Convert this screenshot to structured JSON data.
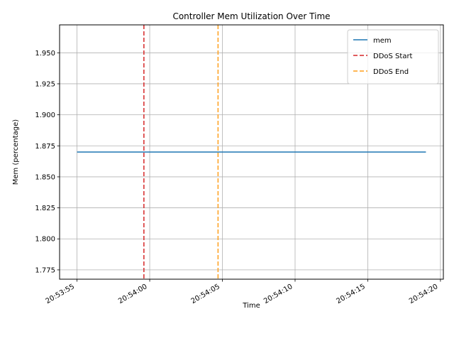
{
  "chart_data": {
    "type": "line",
    "title": "Controller Mem Utilization Over Time",
    "xlabel": "Time",
    "ylabel": "Mem (percentage)",
    "x_range": [
      "20:53:53.8",
      "20:54:20.2"
    ],
    "ylim": [
      1.7675,
      1.9725
    ],
    "x_ticks": [
      "20:53:55",
      "20:54:00",
      "20:54:05",
      "20:54:10",
      "20:54:15",
      "20:54:20"
    ],
    "y_ticks": [
      1.775,
      1.8,
      1.825,
      1.85,
      1.875,
      1.9,
      1.925,
      1.95
    ],
    "y_tick_labels": [
      "1.775",
      "1.800",
      "1.825",
      "1.850",
      "1.875",
      "1.900",
      "1.925",
      "1.950"
    ],
    "grid": true,
    "legend_position": "top-right",
    "series": [
      {
        "name": "mem",
        "color": "#1f77b4",
        "points": [
          [
            "20:53:55",
            1.87
          ],
          [
            "20:54:19",
            1.87
          ]
        ]
      }
    ],
    "vlines": [
      {
        "name": "DDoS Start",
        "x": "20:53:59.6",
        "color": "#d62728",
        "style": "dashed"
      },
      {
        "name": "DDoS End",
        "x": "20:54:04.7",
        "color": "#ff9f1c",
        "style": "dashed"
      }
    ]
  }
}
